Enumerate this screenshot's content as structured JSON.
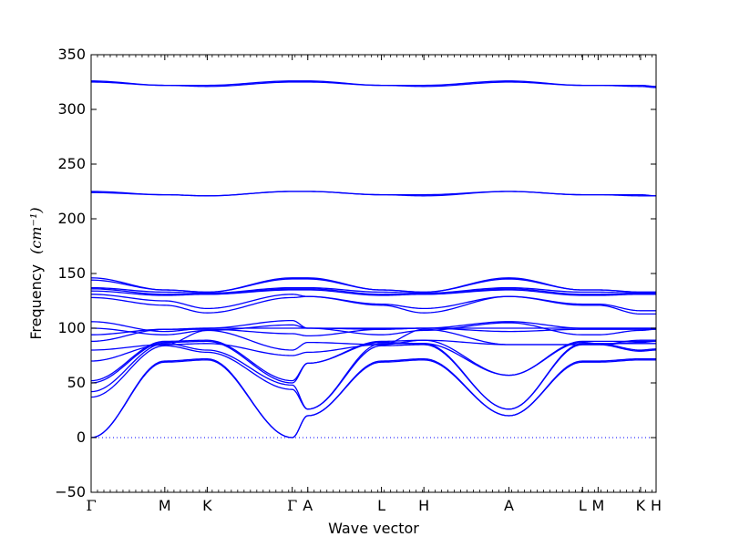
{
  "chart_data": {
    "type": "line",
    "xlabel": "Wave vector",
    "ylabel": "Frequency",
    "ylabel_unit": "(cm⁻¹)",
    "ylim": [
      -50,
      350
    ],
    "yticks": [
      -50,
      0,
      50,
      100,
      150,
      200,
      250,
      300,
      350
    ],
    "grid": false,
    "legend": "none",
    "line_color": "#0000ff",
    "zero_line": {
      "y": 0,
      "style": "dotted",
      "color": "#0000ff"
    },
    "high_symmetry_points": [
      {
        "label": "Γ",
        "x": 0
      },
      {
        "label": "M",
        "x": 0.578
      },
      {
        "label": "K",
        "x": 0.911
      },
      {
        "label": "Γ",
        "x": 1.578
      },
      {
        "label": "A",
        "x": 1.7
      },
      {
        "label": "L",
        "x": 2.278
      },
      {
        "label": "H",
        "x": 2.611
      },
      {
        "label": "A",
        "x": 3.278
      },
      {
        "label": "L",
        "x": 3.856
      },
      {
        "label": "M",
        "x": 3.978
      },
      {
        "label": "K",
        "x": 4.311
      },
      {
        "label": "H",
        "x": 4.433
      }
    ],
    "bands": [
      [
        0,
        70,
        72,
        0,
        20,
        70,
        72,
        20,
        70,
        70,
        72,
        72
      ],
      [
        0,
        69,
        71,
        0,
        20,
        69,
        71,
        20,
        69,
        69,
        71,
        71
      ],
      [
        37,
        84,
        78,
        44,
        26,
        84,
        85,
        26,
        85,
        85,
        79,
        80
      ],
      [
        42,
        86,
        80,
        48,
        26,
        86,
        86,
        26,
        86,
        86,
        80,
        81
      ],
      [
        50,
        87,
        88,
        50,
        68,
        87,
        86,
        57,
        87,
        86,
        86,
        86
      ],
      [
        52,
        88,
        89,
        52,
        68,
        88,
        89,
        57,
        88,
        88,
        88,
        88
      ],
      [
        70,
        85,
        86,
        75,
        78,
        85,
        89,
        85,
        85,
        85,
        87,
        88
      ],
      [
        80,
        85,
        98,
        80,
        87,
        85,
        99,
        85,
        85,
        85,
        89,
        89
      ],
      [
        88,
        99,
        99,
        95,
        93,
        99,
        100,
        97,
        99,
        99,
        99,
        99
      ],
      [
        94,
        99,
        100,
        100,
        100,
        100,
        100,
        100,
        100,
        100,
        100,
        100
      ],
      [
        100,
        94,
        98,
        103,
        100,
        94,
        98,
        105,
        94,
        94,
        98,
        99
      ],
      [
        106,
        97,
        100,
        107,
        100,
        99,
        100,
        106,
        100,
        100,
        100,
        100
      ],
      [
        128,
        121,
        114,
        128,
        129,
        121,
        114,
        129,
        121,
        121,
        113,
        113
      ],
      [
        131,
        125,
        118,
        131,
        129,
        122,
        118,
        129,
        122,
        122,
        116,
        116
      ],
      [
        134,
        130,
        131,
        135,
        135,
        130,
        131,
        135,
        130,
        130,
        131,
        131
      ],
      [
        136,
        131,
        131,
        136,
        136,
        131,
        131,
        136,
        131,
        131,
        131,
        131
      ],
      [
        137,
        133,
        132,
        137,
        137,
        133,
        132,
        137,
        133,
        133,
        132,
        132
      ],
      [
        144,
        135,
        133,
        145,
        145,
        135,
        133,
        145,
        135,
        135,
        133,
        133
      ],
      [
        146,
        135,
        133,
        146,
        146,
        135,
        133,
        146,
        135,
        135,
        133,
        133
      ],
      [
        224,
        222,
        221,
        225,
        225,
        222,
        221,
        225,
        222,
        222,
        221,
        221
      ],
      [
        225,
        222,
        221,
        225,
        225,
        222,
        222,
        225,
        222,
        222,
        222,
        221
      ],
      [
        325,
        322,
        321,
        325,
        325,
        322,
        321,
        325,
        322,
        322,
        321,
        320
      ],
      [
        326,
        322,
        322,
        326,
        326,
        322,
        322,
        326,
        322,
        322,
        322,
        321
      ]
    ]
  }
}
